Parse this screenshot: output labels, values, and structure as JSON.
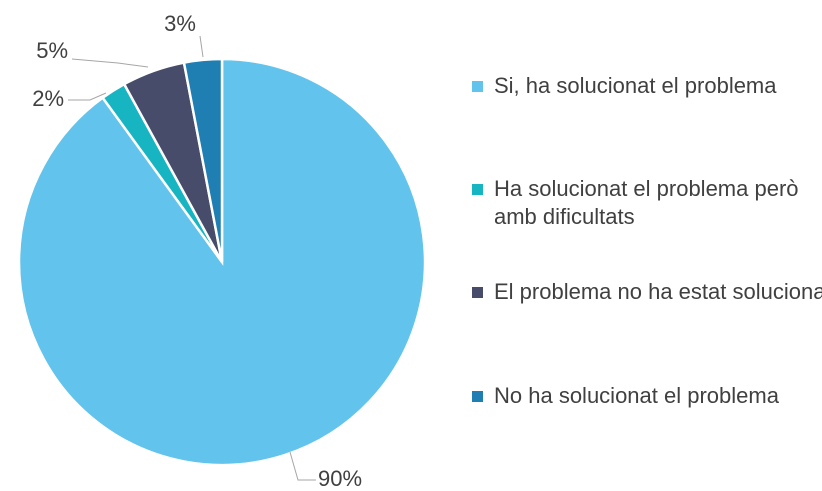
{
  "chart_data": {
    "type": "pie",
    "categories": [
      "Si, ha solucionat el problema",
      "Ha solucionat el problema però amb dificultats",
      "El problema no ha estat solucionat",
      "No ha solucionat el problema"
    ],
    "values": [
      90,
      2,
      5,
      3
    ],
    "value_labels": [
      "90%",
      "2%",
      "5%",
      "3%"
    ],
    "colors": [
      "#62c3ec",
      "#17b5c2",
      "#474c6b",
      "#1f7fb3"
    ],
    "legend": "right"
  }
}
